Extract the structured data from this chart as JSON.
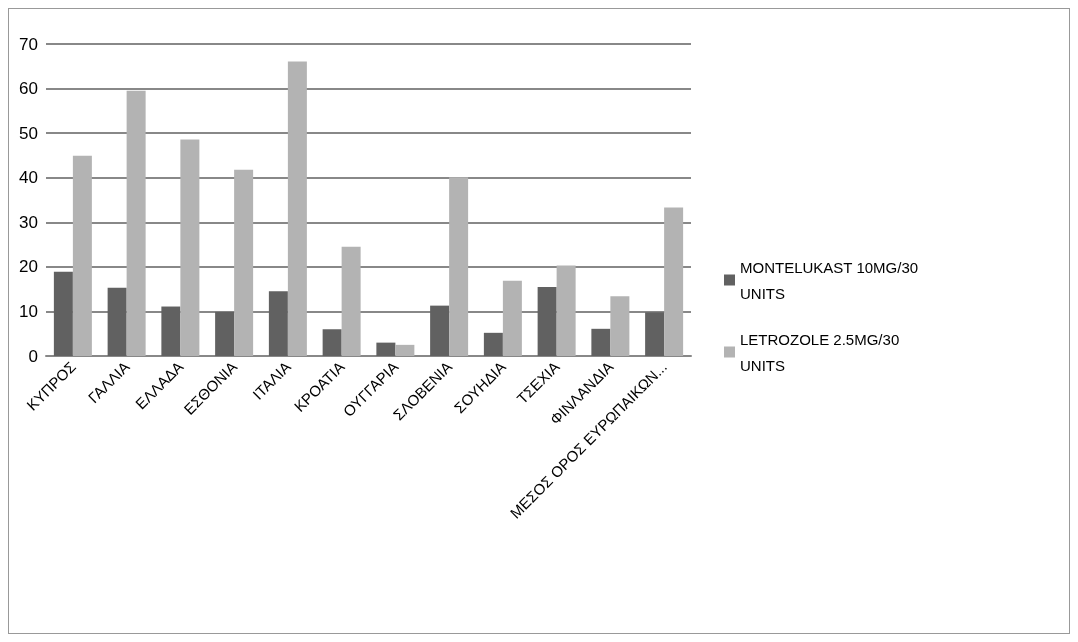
{
  "chart_data": {
    "type": "bar",
    "categories": [
      "ΚΥΠΡΟΣ",
      "ΓΑΛΛΙΑ",
      "ΕΛΛΑΔΑ",
      "ΕΣΘΟΝΙΑ",
      "ΙΤΑΛΙΑ",
      "ΚΡΟΑΤΙΑ",
      "ΟΥΓΓΑΡΙΑ",
      "ΣΛΟΒΕΝΙΑ",
      "ΣΟΥΗΔΙΑ",
      "ΤΣΕΧΙΑ",
      "ΦΙΝΛΑΝΔΙΑ",
      "ΜΕΣΟΣ ΟΡΟΣ ΕΥΡΩΠΑΙΚΩΝ..."
    ],
    "series": [
      {
        "name": "MONTELUKAST 10MG/30 UNITS",
        "color": "#616161",
        "values": [
          18.9,
          15.3,
          11.1,
          9.9,
          14.5,
          6.0,
          3.0,
          11.3,
          5.2,
          15.5,
          6.1,
          9.8
        ]
      },
      {
        "name": "LETROZOLE 2.5MG/30 UNITS",
        "color": "#b3b3b3",
        "values": [
          44.9,
          59.5,
          48.6,
          41.8,
          66.1,
          24.5,
          2.5,
          40.1,
          16.9,
          20.3,
          13.4,
          33.3
        ]
      }
    ],
    "ylim": [
      0,
      70
    ],
    "yticks": [
      0,
      10,
      20,
      30,
      40,
      50,
      60,
      70
    ],
    "grid": "y",
    "legend": "right"
  }
}
